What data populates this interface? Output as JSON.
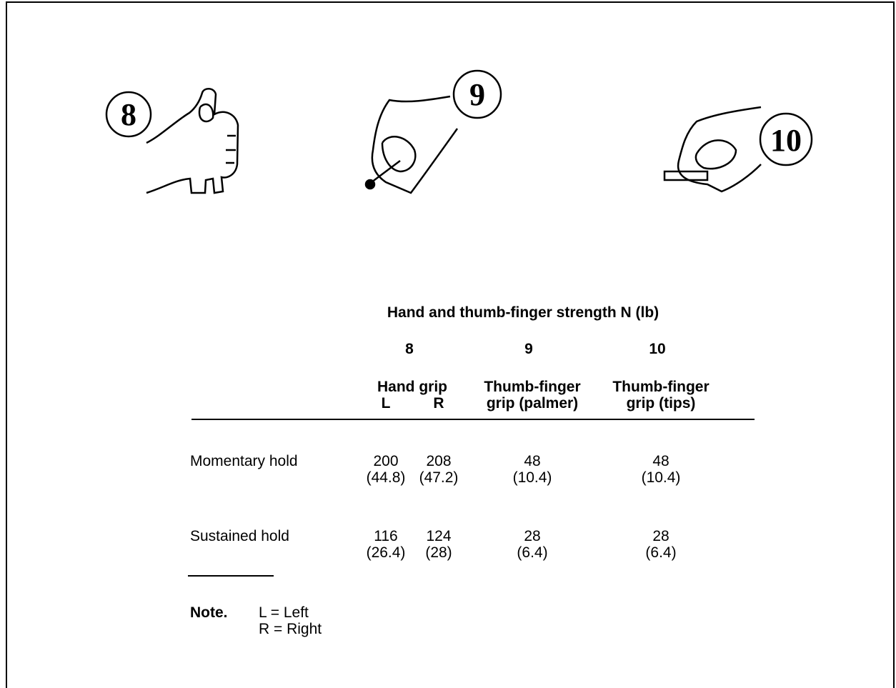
{
  "figures": [
    {
      "label": "8"
    },
    {
      "label": "9"
    },
    {
      "label": "10"
    }
  ],
  "table": {
    "title": "Hand and thumb-finger strength N (lb)",
    "column_numbers": [
      "8",
      "9",
      "10"
    ],
    "column_headers": [
      {
        "lines": [
          "Hand grip"
        ],
        "sub": [
          "L",
          "R"
        ]
      },
      {
        "lines": [
          "Thumb-finger",
          "grip (palmer)"
        ]
      },
      {
        "lines": [
          "Thumb-finger",
          "grip (tips)"
        ]
      }
    ],
    "rows": [
      {
        "label": "Momentary hold",
        "newtons": [
          200,
          208,
          48,
          48
        ],
        "pounds": [
          "(44.8)",
          "(47.2)",
          "(10.4)",
          "(10.4)"
        ]
      },
      {
        "label": "Sustained hold",
        "newtons": [
          116,
          124,
          28,
          28
        ],
        "pounds": [
          "(26.4)",
          "(28)",
          "(6.4)",
          "(6.4)"
        ]
      }
    ]
  },
  "note": {
    "label": "Note.",
    "lines": [
      "L = Left",
      "R = Right"
    ]
  }
}
